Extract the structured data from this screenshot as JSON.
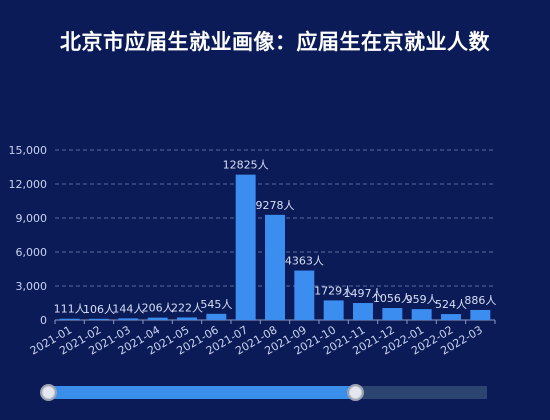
{
  "chart_data": {
    "type": "bar",
    "title": "北京市应届生就业画像：应届生在京就业人数",
    "categories": [
      "2021-01",
      "2021-02",
      "2021-03",
      "2021-04",
      "2021-05",
      "2021-06",
      "2021-07",
      "2021-08",
      "2021-09",
      "2021-10",
      "2021-11",
      "2021-12",
      "2022-01",
      "2022-02",
      "2022-03"
    ],
    "values": [
      111,
      106,
      144,
      206,
      222,
      545,
      12825,
      9278,
      4363,
      1729,
      1497,
      1056,
      959,
      524,
      886
    ],
    "data_labels": [
      "111人",
      "106人",
      "144人",
      "206人",
      "222人",
      "545人",
      "12825人",
      "9278人",
      "4363人",
      "1729人",
      "1497人",
      "1056人",
      "959人",
      "524人",
      "886人"
    ],
    "yticks": [
      "0",
      "3,000",
      "6,000",
      "9,000",
      "12,000",
      "15,000"
    ],
    "ytick_values": [
      0,
      3000,
      6000,
      9000,
      12000,
      15000
    ],
    "ylim": [
      0,
      15000
    ],
    "grid": true,
    "bar_color": "#3b8ef0",
    "background": "#0b1b57"
  },
  "zoom_slider": {
    "start_fraction": 0.0,
    "end_fraction": 0.7,
    "fill_color": "#3a8fea",
    "track_color": "#2c4470"
  }
}
